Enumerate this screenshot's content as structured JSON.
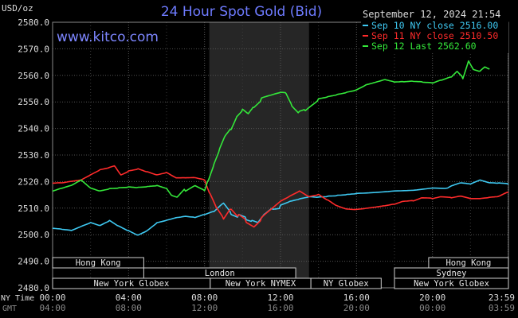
{
  "chart_data": {
    "type": "line",
    "title": "24 Hour Spot Gold (Bid)",
    "watermark": "www.kitco.com",
    "unit_label": "USD/oz",
    "date_label": "September 12, 2024 21:54",
    "ylim": [
      2480,
      2580
    ],
    "yticks": [
      "2580.0",
      "2570.0",
      "2560.0",
      "2550.0",
      "2540.0",
      "2530.0",
      "2520.0",
      "2510.0",
      "2500.0",
      "2490.0",
      "2480.0"
    ],
    "xlim": [
      0,
      24
    ],
    "xticks": [
      {
        "x": 0,
        "label": "00:00",
        "gmt": "04:00"
      },
      {
        "x": 4,
        "label": "04:00",
        "gmt": "08:00"
      },
      {
        "x": 8,
        "label": "08:00",
        "gmt": "12:00"
      },
      {
        "x": 12,
        "label": "12:00",
        "gmt": "16:00"
      },
      {
        "x": 16,
        "label": "16:00",
        "gmt": "20:00"
      },
      {
        "x": 20,
        "label": "20:00",
        "gmt": "00:00"
      },
      {
        "x": 23.98,
        "label": "23:59",
        "gmt": "03:59"
      }
    ],
    "timezones": {
      "local": "NY Time",
      "gmt": "GMT"
    },
    "grid": true,
    "legend_position": "top-right",
    "colors": {
      "background": "#000000",
      "plot": "#000000",
      "shade": "#262626",
      "grid": "#555555",
      "sep10": "#3ec9f2",
      "sep11": "#ff2b2b",
      "sep12": "#34e83a"
    },
    "shaded_range": [
      8.25,
      13.5
    ],
    "series": [
      {
        "key": "sep10",
        "name": "Sep 10 NY close 2516.00",
        "color": "#3ec9f2",
        "points": [
          [
            0,
            2502
          ],
          [
            0.5,
            2501.5
          ],
          [
            1,
            2501
          ],
          [
            1.5,
            2502.5
          ],
          [
            2,
            2504
          ],
          [
            2.5,
            2503
          ],
          [
            3,
            2505
          ],
          [
            3.5,
            2503
          ],
          [
            4,
            2501.5
          ],
          [
            4.5,
            2500
          ],
          [
            5,
            2502
          ],
          [
            5.5,
            2505
          ],
          [
            6,
            2506
          ],
          [
            6.5,
            2507
          ],
          [
            7,
            2507.5
          ],
          [
            7.5,
            2507
          ],
          [
            8,
            2508
          ],
          [
            8.5,
            2509
          ],
          [
            9,
            2512
          ],
          [
            9.4,
            2508
          ],
          [
            9.8,
            2507
          ],
          [
            10.2,
            2506
          ],
          [
            10.5,
            2505
          ],
          [
            10.8,
            2504
          ],
          [
            11.2,
            2508
          ],
          [
            11.6,
            2510
          ],
          [
            12,
            2510.5
          ],
          [
            12.5,
            2512
          ],
          [
            13,
            2513
          ],
          [
            13.5,
            2514
          ],
          [
            14,
            2514
          ],
          [
            14.5,
            2514.5
          ],
          [
            15,
            2515
          ],
          [
            15.5,
            2515.5
          ],
          [
            16,
            2516
          ],
          [
            17,
            2516.5
          ],
          [
            18,
            2517
          ],
          [
            19,
            2517
          ],
          [
            20,
            2517.5
          ],
          [
            20.8,
            2517
          ],
          [
            21,
            2518
          ],
          [
            21.5,
            2519
          ],
          [
            22,
            2518.5
          ],
          [
            22.5,
            2520
          ],
          [
            23,
            2519
          ],
          [
            23.5,
            2519
          ],
          [
            24,
            2519
          ]
        ]
      },
      {
        "key": "sep11",
        "name": "Sep 11 NY close 2510.50",
        "color": "#ff2b2b",
        "points": [
          [
            0,
            2519
          ],
          [
            0.5,
            2519
          ],
          [
            1,
            2519.5
          ],
          [
            1.5,
            2520
          ],
          [
            2,
            2522
          ],
          [
            2.5,
            2524
          ],
          [
            3,
            2525
          ],
          [
            3.3,
            2526
          ],
          [
            3.6,
            2523
          ],
          [
            4,
            2524
          ],
          [
            4.5,
            2525
          ],
          [
            5,
            2524
          ],
          [
            5.5,
            2523
          ],
          [
            6,
            2524
          ],
          [
            6.5,
            2522
          ],
          [
            7,
            2522
          ],
          [
            7.5,
            2522
          ],
          [
            8,
            2521
          ],
          [
            8.3,
            2515
          ],
          [
            8.6,
            2510
          ],
          [
            9,
            2506
          ],
          [
            9.4,
            2510
          ],
          [
            9.8,
            2507
          ],
          [
            10.2,
            2505
          ],
          [
            10.6,
            2503
          ],
          [
            11,
            2506
          ],
          [
            11.5,
            2509
          ],
          [
            12,
            2512
          ],
          [
            12.5,
            2514
          ],
          [
            13,
            2516
          ],
          [
            13.5,
            2514
          ],
          [
            14,
            2515
          ],
          [
            14.5,
            2513
          ],
          [
            15,
            2511
          ],
          [
            15.5,
            2510
          ],
          [
            16,
            2510
          ],
          [
            16.5,
            2510.5
          ],
          [
            17,
            2511
          ],
          [
            17.5,
            2511.5
          ],
          [
            18,
            2512
          ],
          [
            18.5,
            2513
          ],
          [
            19,
            2513
          ],
          [
            19.5,
            2514
          ],
          [
            20,
            2513.5
          ],
          [
            20.5,
            2514
          ],
          [
            21,
            2513.5
          ],
          [
            21.5,
            2514
          ],
          [
            22,
            2513
          ],
          [
            22.5,
            2513
          ],
          [
            23,
            2513.5
          ],
          [
            23.5,
            2514
          ],
          [
            24,
            2516
          ]
        ]
      },
      {
        "key": "sep12",
        "name": "Sep 12 Last 2562.60",
        "color": "#34e83a",
        "points": [
          [
            0,
            2516
          ],
          [
            0.5,
            2517
          ],
          [
            1,
            2518
          ],
          [
            1.5,
            2520
          ],
          [
            2,
            2517
          ],
          [
            2.5,
            2516
          ],
          [
            3,
            2517
          ],
          [
            3.5,
            2517.5
          ],
          [
            4,
            2518
          ],
          [
            4.5,
            2518
          ],
          [
            5,
            2518.5
          ],
          [
            5.5,
            2519
          ],
          [
            6,
            2518
          ],
          [
            6.3,
            2515
          ],
          [
            6.6,
            2514
          ],
          [
            7,
            2517
          ],
          [
            7.5,
            2519
          ],
          [
            8,
            2517
          ],
          [
            8.2,
            2521
          ],
          [
            8.5,
            2527
          ],
          [
            8.8,
            2532
          ],
          [
            9.1,
            2537
          ],
          [
            9.4,
            2540
          ],
          [
            9.7,
            2545
          ],
          [
            10,
            2547
          ],
          [
            10.3,
            2545
          ],
          [
            10.6,
            2548
          ],
          [
            11,
            2551
          ],
          [
            11.5,
            2552
          ],
          [
            12,
            2553
          ],
          [
            12.3,
            2553
          ],
          [
            12.6,
            2549
          ],
          [
            13,
            2546
          ],
          [
            13.3,
            2547
          ],
          [
            13.6,
            2549
          ],
          [
            14,
            2551
          ],
          [
            14.5,
            2552
          ],
          [
            15,
            2553
          ],
          [
            15.5,
            2554
          ],
          [
            16,
            2555
          ],
          [
            16.5,
            2557
          ],
          [
            17,
            2558
          ],
          [
            17.5,
            2559
          ],
          [
            18,
            2558
          ],
          [
            18.5,
            2558
          ],
          [
            19,
            2558
          ],
          [
            19.5,
            2557.5
          ],
          [
            20,
            2557
          ],
          [
            20.5,
            2558
          ],
          [
            21,
            2559
          ],
          [
            21.3,
            2561
          ],
          [
            21.6,
            2559
          ],
          [
            21.9,
            2566
          ],
          [
            22.2,
            2562
          ],
          [
            22.5,
            2561
          ],
          [
            22.8,
            2563
          ],
          [
            23,
            2562.6
          ]
        ]
      }
    ],
    "sessions": [
      {
        "label": "Hong Kong",
        "start": 0,
        "end": 4.8,
        "row": 0
      },
      {
        "label": "London",
        "start": 4.8,
        "end": 12.8,
        "row": 1
      },
      {
        "label": "New York Globex",
        "start": 0,
        "end": 8.3,
        "row": 2
      },
      {
        "label": "New York NYMEX",
        "start": 8.3,
        "end": 13.6,
        "row": 2
      },
      {
        "label": "NY Globex",
        "start": 13.6,
        "end": 17.3,
        "row": 2
      },
      {
        "label": "Hong Kong",
        "start": 19.8,
        "end": 24,
        "row": 0
      },
      {
        "label": "Sydney",
        "start": 18,
        "end": 24,
        "row": 1
      },
      {
        "label": "New York Globex",
        "start": 18,
        "end": 24,
        "row": 2
      }
    ]
  }
}
